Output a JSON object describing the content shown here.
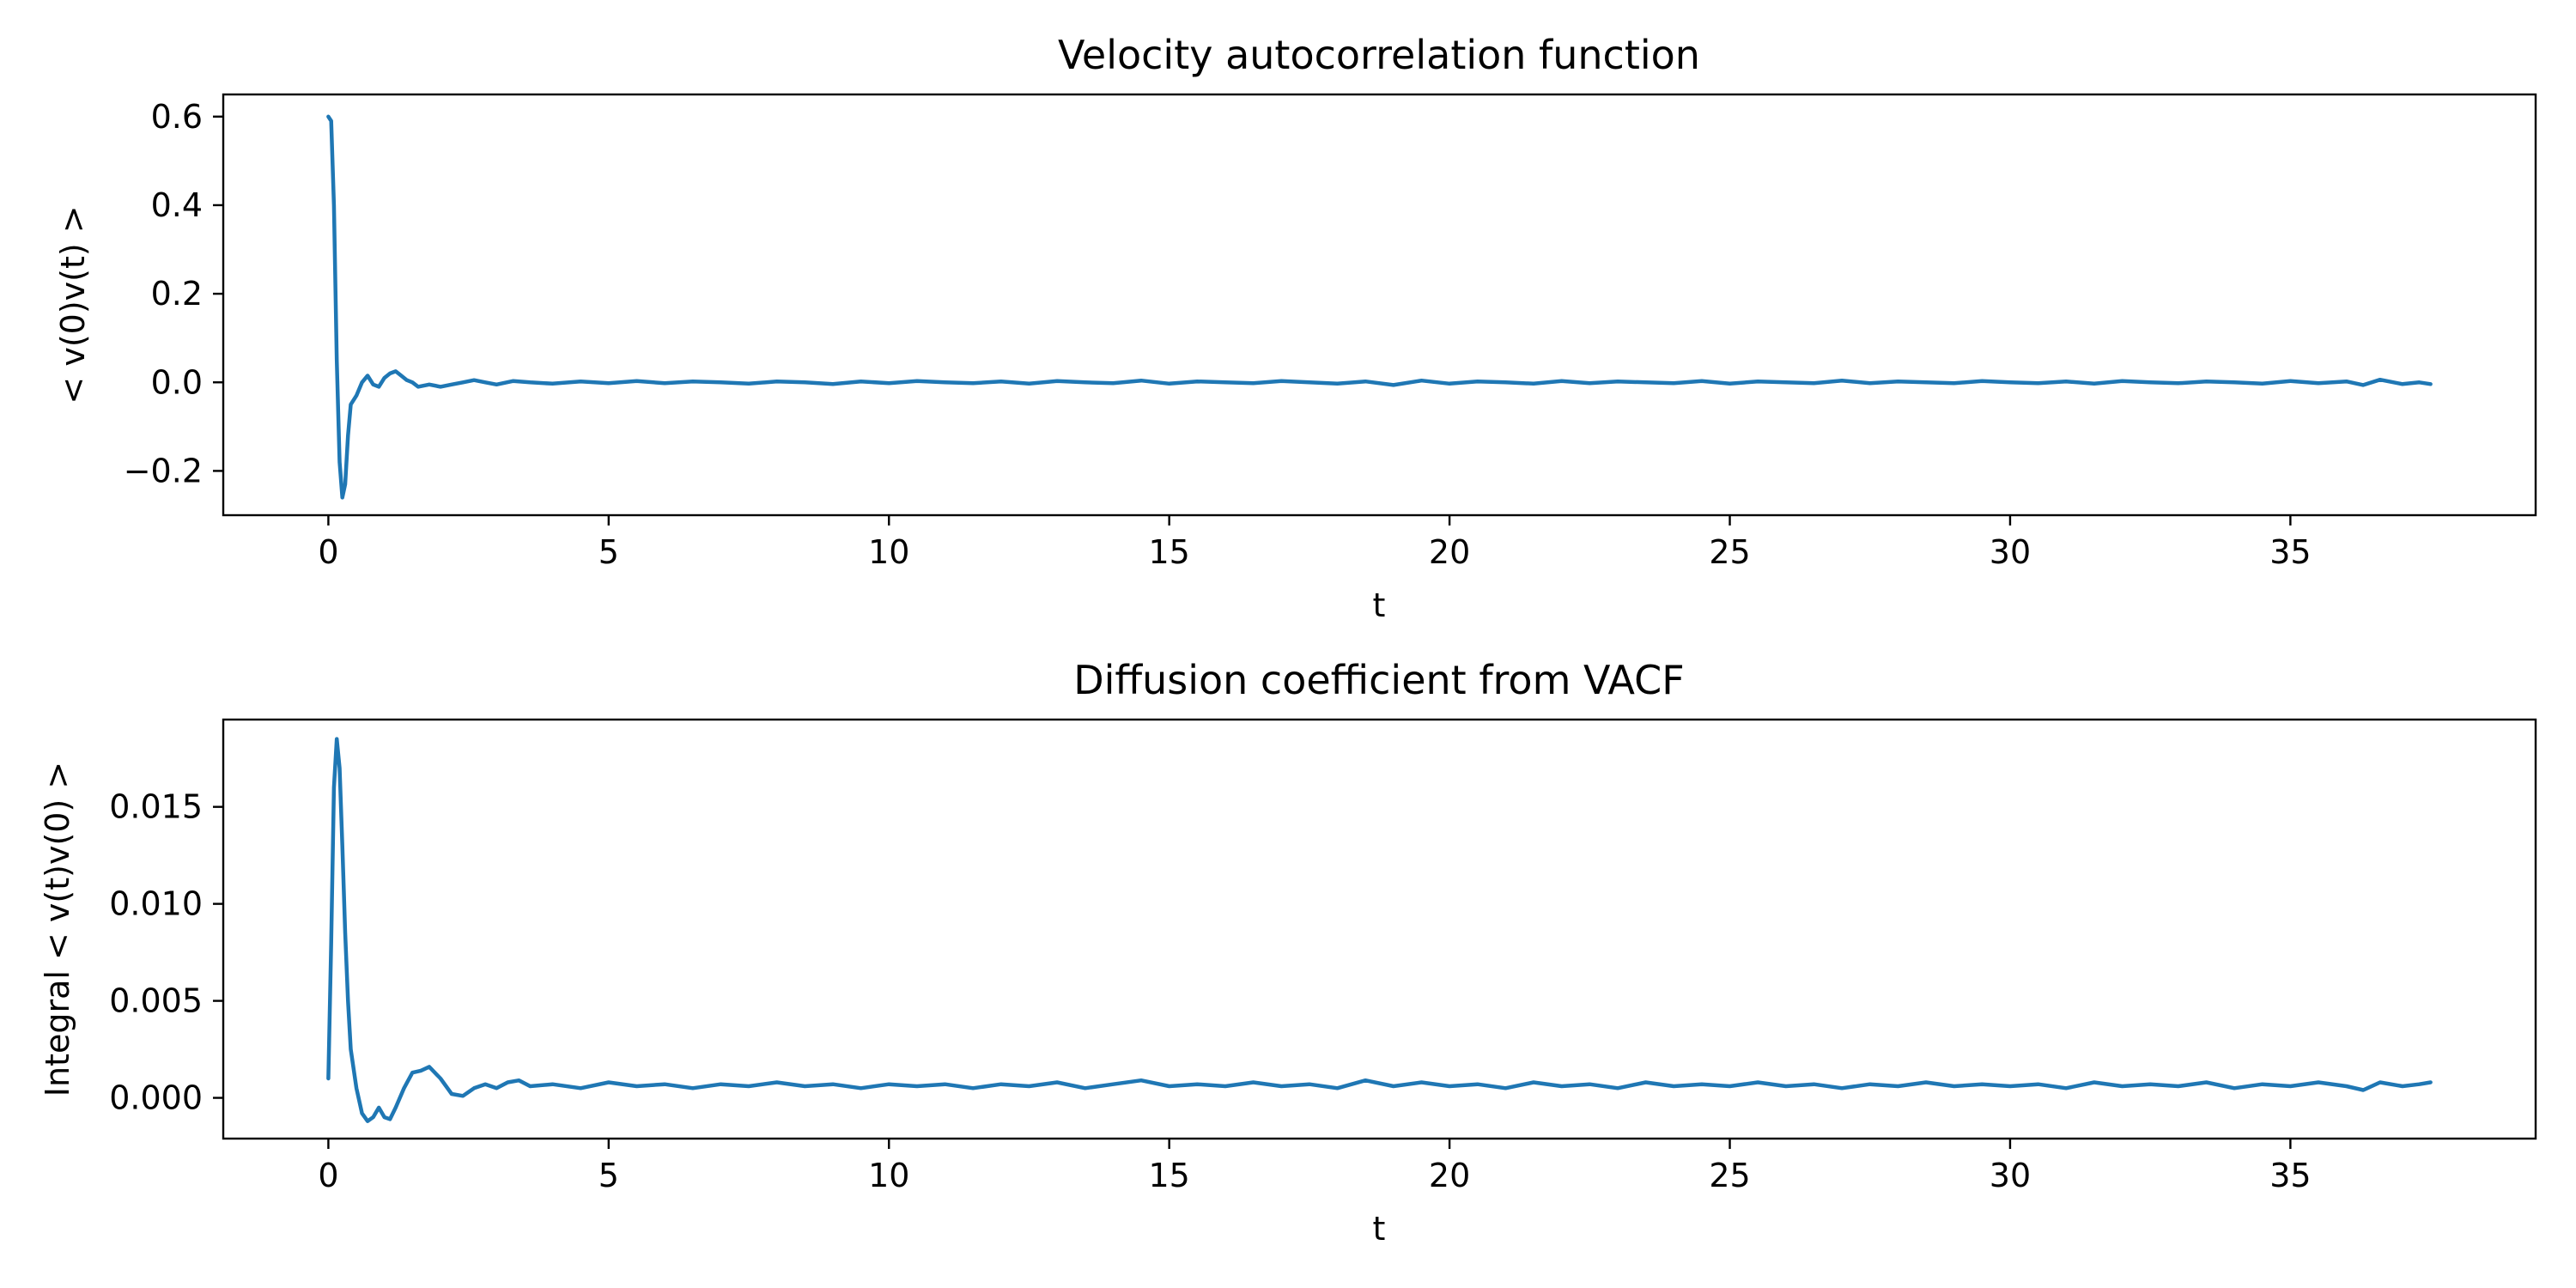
{
  "chart_data": [
    {
      "type": "line",
      "title": "Velocity autocorrelation function",
      "xlabel": "t",
      "ylabel": "< v(0)v(t) >",
      "xlim": [
        -1.875,
        39.375
      ],
      "ylim": [
        -0.3,
        0.65
      ],
      "xticks": [
        0,
        5,
        10,
        15,
        20,
        25,
        30,
        35
      ],
      "xtick_labels": [
        "0",
        "5",
        "10",
        "15",
        "20",
        "25",
        "30",
        "35"
      ],
      "yticks": [
        -0.2,
        0.0,
        0.2,
        0.4,
        0.6
      ],
      "ytick_labels": [
        "−0.2",
        "0.0",
        "0.2",
        "0.4",
        "0.6"
      ],
      "grid": false,
      "color": "#1f77b4",
      "series": [
        {
          "x": [
            0,
            0.05,
            0.1,
            0.15,
            0.2,
            0.25,
            0.3,
            0.35,
            0.4,
            0.5,
            0.6,
            0.7,
            0.8,
            0.9,
            1.0,
            1.1,
            1.2,
            1.3,
            1.4,
            1.5,
            1.6,
            1.8,
            2.0,
            2.2,
            2.4,
            2.6,
            2.8,
            3.0,
            3.3,
            3.6,
            4.0,
            4.5,
            5.0,
            5.5,
            6.0,
            6.5,
            7.0,
            7.5,
            8.0,
            8.5,
            9.0,
            9.5,
            10.0,
            10.5,
            11.0,
            11.5,
            12.0,
            12.5,
            13.0,
            13.5,
            14.0,
            14.5,
            15.0,
            15.5,
            16.0,
            16.5,
            17.0,
            17.5,
            18.0,
            18.5,
            19.0,
            19.5,
            20.0,
            20.5,
            21.0,
            21.5,
            22.0,
            22.5,
            23.0,
            23.5,
            24.0,
            24.5,
            25.0,
            25.5,
            26.0,
            26.5,
            27.0,
            27.5,
            28.0,
            28.5,
            29.0,
            29.5,
            30.0,
            30.5,
            31.0,
            31.5,
            32.0,
            32.5,
            33.0,
            33.5,
            34.0,
            34.5,
            35.0,
            35.5,
            36.0,
            36.3,
            36.6,
            37.0,
            37.3,
            37.5
          ],
          "y": [
            0.6,
            0.59,
            0.4,
            0.05,
            -0.18,
            -0.26,
            -0.23,
            -0.12,
            -0.05,
            -0.03,
            0.0,
            0.015,
            -0.005,
            -0.01,
            0.01,
            0.02,
            0.025,
            0.015,
            0.005,
            0.0,
            -0.01,
            -0.005,
            -0.01,
            -0.005,
            0.0,
            0.005,
            0.0,
            -0.005,
            0.003,
            0.0,
            -0.003,
            0.002,
            -0.002,
            0.003,
            -0.002,
            0.002,
            0.0,
            -0.003,
            0.002,
            0.0,
            -0.004,
            0.002,
            -0.002,
            0.003,
            0.0,
            -0.002,
            0.002,
            -0.003,
            0.003,
            0.0,
            -0.002,
            0.004,
            -0.003,
            0.002,
            0.0,
            -0.002,
            0.003,
            0.0,
            -0.003,
            0.002,
            -0.006,
            0.004,
            -0.003,
            0.002,
            0.0,
            -0.003,
            0.003,
            -0.002,
            0.002,
            0.0,
            -0.002,
            0.003,
            -0.003,
            0.002,
            0.0,
            -0.002,
            0.004,
            -0.002,
            0.002,
            0.0,
            -0.002,
            0.003,
            0.0,
            -0.002,
            0.002,
            -0.003,
            0.003,
            0.0,
            -0.002,
            0.002,
            0.0,
            -0.003,
            0.003,
            -0.002,
            0.002,
            -0.006,
            0.006,
            -0.004,
            0.0,
            -0.004
          ]
        }
      ]
    },
    {
      "type": "line",
      "title": "Diffusion coefficient from VACF",
      "xlabel": "t",
      "ylabel": "Integral  < v(t)v(0) >",
      "xlim": [
        -1.875,
        39.375
      ],
      "ylim": [
        -0.0021,
        0.0195
      ],
      "xticks": [
        0,
        5,
        10,
        15,
        20,
        25,
        30,
        35
      ],
      "xtick_labels": [
        "0",
        "5",
        "10",
        "15",
        "20",
        "25",
        "30",
        "35"
      ],
      "yticks": [
        0.0,
        0.005,
        0.01,
        0.015
      ],
      "ytick_labels": [
        "0.000",
        "0.005",
        "0.010",
        "0.015"
      ],
      "grid": false,
      "color": "#1f77b4",
      "series": [
        {
          "x": [
            0,
            0.05,
            0.1,
            0.15,
            0.2,
            0.25,
            0.3,
            0.35,
            0.4,
            0.5,
            0.6,
            0.7,
            0.8,
            0.9,
            1.0,
            1.1,
            1.2,
            1.35,
            1.5,
            1.65,
            1.8,
            2.0,
            2.2,
            2.4,
            2.6,
            2.8,
            3.0,
            3.2,
            3.4,
            3.6,
            4.0,
            4.5,
            5.0,
            5.5,
            6.0,
            6.5,
            7.0,
            7.5,
            8.0,
            8.5,
            9.0,
            9.5,
            10.0,
            10.5,
            11.0,
            11.5,
            12.0,
            12.5,
            13.0,
            13.5,
            14.0,
            14.5,
            15.0,
            15.5,
            16.0,
            16.5,
            17.0,
            17.5,
            18.0,
            18.5,
            19.0,
            19.5,
            20.0,
            20.5,
            21.0,
            21.5,
            22.0,
            22.5,
            23.0,
            23.5,
            24.0,
            24.5,
            25.0,
            25.5,
            26.0,
            26.5,
            27.0,
            27.5,
            28.0,
            28.5,
            29.0,
            29.5,
            30.0,
            30.5,
            31.0,
            31.5,
            32.0,
            32.5,
            33.0,
            33.5,
            34.0,
            34.5,
            35.0,
            35.5,
            36.0,
            36.3,
            36.6,
            37.0,
            37.3,
            37.5
          ],
          "y": [
            0.001,
            0.008,
            0.016,
            0.0185,
            0.017,
            0.013,
            0.0085,
            0.005,
            0.0025,
            0.0005,
            -0.0008,
            -0.0012,
            -0.001,
            -0.0005,
            -0.001,
            -0.0011,
            -0.0005,
            0.0005,
            0.0013,
            0.0014,
            0.0016,
            0.001,
            0.0002,
            0.0001,
            0.0005,
            0.0007,
            0.0005,
            0.0008,
            0.0009,
            0.0006,
            0.0007,
            0.0005,
            0.0008,
            0.0006,
            0.0007,
            0.0005,
            0.0007,
            0.0006,
            0.0008,
            0.0006,
            0.0007,
            0.0005,
            0.0007,
            0.0006,
            0.0007,
            0.0005,
            0.0007,
            0.0006,
            0.0008,
            0.0005,
            0.0007,
            0.0009,
            0.0006,
            0.0007,
            0.0006,
            0.0008,
            0.0006,
            0.0007,
            0.0005,
            0.0009,
            0.0006,
            0.0008,
            0.0006,
            0.0007,
            0.0005,
            0.0008,
            0.0006,
            0.0007,
            0.0005,
            0.0008,
            0.0006,
            0.0007,
            0.0006,
            0.0008,
            0.0006,
            0.0007,
            0.0005,
            0.0007,
            0.0006,
            0.0008,
            0.0006,
            0.0007,
            0.0006,
            0.0007,
            0.0005,
            0.0008,
            0.0006,
            0.0007,
            0.0006,
            0.0008,
            0.0005,
            0.0007,
            0.0006,
            0.0008,
            0.0006,
            0.0004,
            0.0008,
            0.0006,
            0.0007,
            0.0008
          ]
        }
      ]
    }
  ]
}
